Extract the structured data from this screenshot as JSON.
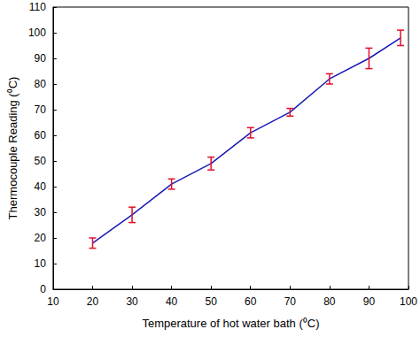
{
  "chart_data": {
    "type": "line",
    "x_label": "Temperature of hot water bath (⁰C)",
    "y_label": "Thermocouple Reading (⁰C)",
    "x": [
      20,
      30,
      40,
      50,
      60,
      70,
      80,
      90,
      98
    ],
    "values": [
      18,
      29,
      41,
      49,
      61,
      69,
      82,
      90,
      98
    ],
    "errors": [
      2,
      3,
      2,
      2.5,
      2,
      1.5,
      2,
      4,
      3
    ],
    "color": "#1a1ab8",
    "xlim": [
      10,
      100
    ],
    "xticks": [
      10,
      20,
      30,
      40,
      50,
      60,
      70,
      80,
      90,
      100
    ],
    "ylim": [
      0,
      110
    ],
    "yticks": [
      0,
      10,
      20,
      30,
      40,
      50,
      60,
      70,
      80,
      90,
      100,
      110
    ],
    "grid": false
  }
}
